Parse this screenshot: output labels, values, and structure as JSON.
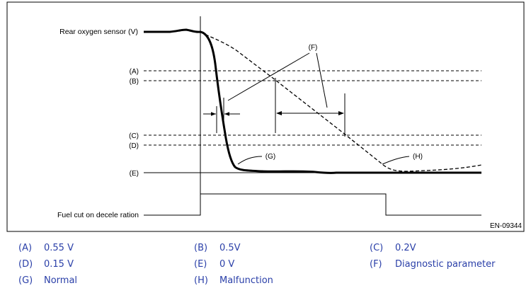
{
  "diagram": {
    "signal_label": "Rear oxygen sensor (V)",
    "fuel_cut_label": "Fuel cut on decele ration",
    "figure_code": "EN-09344",
    "level_tags": {
      "a": "(A)",
      "b": "(B)",
      "c": "(C)",
      "d": "(D)",
      "e": "(E)"
    },
    "callouts": {
      "f": "(F)",
      "g": "(G)",
      "h": "(H)"
    }
  },
  "legend": [
    {
      "key": "(A)",
      "text": "0.55 V"
    },
    {
      "key": "(B)",
      "text": "0.5V"
    },
    {
      "key": "(C)",
      "text": "0.2V"
    },
    {
      "key": "(D)",
      "text": "0.15 V"
    },
    {
      "key": "(E)",
      "text": "0 V"
    },
    {
      "key": "(F)",
      "text": "Diagnostic parameter"
    },
    {
      "key": "(G)",
      "text": "Normal"
    },
    {
      "key": "(H)",
      "text": "Malfunction"
    }
  ],
  "colors": {
    "line": "#000000",
    "legend_text": "#2a3fa8"
  }
}
